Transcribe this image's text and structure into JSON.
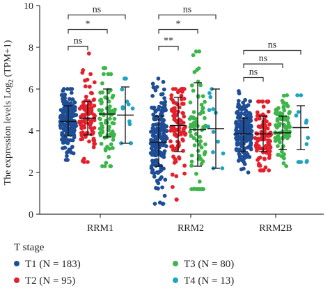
{
  "chart_data": {
    "type": "scatter",
    "ylabel_main": "The expression levels Log",
    "ylabel_sub": "2",
    "ylabel_tail": " (TPM+1)",
    "ylim": [
      0,
      10
    ],
    "yticks": [
      "0",
      "2",
      "4",
      "6",
      "8",
      "10"
    ],
    "categories": [
      "RRM1",
      "RRM2",
      "RRM2B"
    ],
    "legend_title": "T stage",
    "series": [
      {
        "name": "T1",
        "n_label": "(N = 183)",
        "n": 183,
        "color": "#1f4e96"
      },
      {
        "name": "T2",
        "n_label": "(N = 95)",
        "n": 95,
        "color": "#e3202c"
      },
      {
        "name": "T3",
        "n_label": "(N = 80)",
        "n": 80,
        "color": "#3db54a"
      },
      {
        "name": "T4",
        "n_label": "(N = 13)",
        "n": 13,
        "color": "#1fa3c0"
      }
    ],
    "summary": [
      {
        "gene": "RRM1",
        "groups": [
          {
            "mean": 4.45,
            "sd_low": 3.75,
            "sd_high": 5.2,
            "min": 2.6,
            "max": 6.0
          },
          {
            "mean": 4.6,
            "sd_low": 3.8,
            "sd_high": 5.4,
            "min": 2.5,
            "max": 7.7
          },
          {
            "mean": 4.8,
            "sd_low": 3.7,
            "sd_high": 6.0,
            "min": 2.3,
            "max": 7.0
          },
          {
            "mean": 4.75,
            "sd_low": 3.4,
            "sd_high": 6.1,
            "min": 3.4,
            "max": 6.5
          }
        ]
      },
      {
        "gene": "RRM2",
        "groups": [
          {
            "mean": 3.45,
            "sd_low": 2.3,
            "sd_high": 4.7,
            "min": 0.5,
            "max": 6.5
          },
          {
            "mean": 4.25,
            "sd_low": 3.0,
            "sd_high": 5.6,
            "min": 0.7,
            "max": 6.0
          },
          {
            "mean": 4.05,
            "sd_low": 2.3,
            "sd_high": 6.3,
            "min": 1.2,
            "max": 7.8
          },
          {
            "mean": 4.1,
            "sd_low": 2.2,
            "sd_high": 6.0,
            "min": 2.2,
            "max": 6.0
          }
        ]
      },
      {
        "gene": "RRM2B",
        "groups": [
          {
            "mean": 3.85,
            "sd_low": 3.0,
            "sd_high": 4.6,
            "min": 2.0,
            "max": 5.9
          },
          {
            "mean": 3.85,
            "sd_low": 3.0,
            "sd_high": 4.7,
            "min": 2.1,
            "max": 5.4
          },
          {
            "mean": 3.9,
            "sd_low": 3.1,
            "sd_high": 4.7,
            "min": 2.3,
            "max": 5.7
          },
          {
            "mean": 4.15,
            "sd_low": 3.1,
            "sd_high": 5.2,
            "min": 2.5,
            "max": 5.7
          }
        ]
      }
    ],
    "significance": [
      {
        "gene_index": 0,
        "from": 0,
        "to": 1,
        "label": "ns",
        "y": 8.05
      },
      {
        "gene_index": 0,
        "from": 0,
        "to": 2,
        "label": "*",
        "y": 8.85
      },
      {
        "gene_index": 0,
        "from": 0,
        "to": 3,
        "label": "ns",
        "y": 9.55
      },
      {
        "gene_index": 1,
        "from": 0,
        "to": 1,
        "label": "**",
        "y": 8.05
      },
      {
        "gene_index": 1,
        "from": 0,
        "to": 2,
        "label": "*",
        "y": 8.85
      },
      {
        "gene_index": 1,
        "from": 0,
        "to": 3,
        "label": "ns",
        "y": 9.55
      },
      {
        "gene_index": 2,
        "from": 0,
        "to": 1,
        "label": "ns",
        "y": 6.55
      },
      {
        "gene_index": 2,
        "from": 0,
        "to": 2,
        "label": "ns",
        "y": 7.2
      },
      {
        "gene_index": 2,
        "from": 0,
        "to": 3,
        "label": "ns",
        "y": 7.85
      }
    ]
  }
}
